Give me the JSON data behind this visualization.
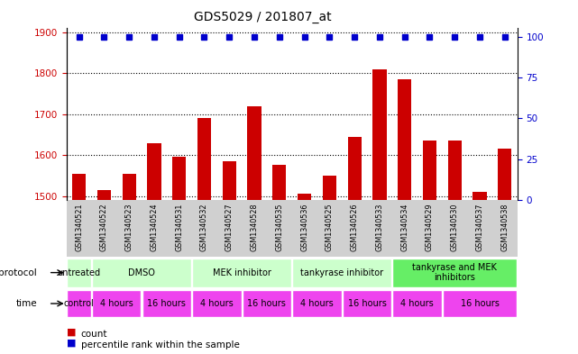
{
  "title": "GDS5029 / 201807_at",
  "samples": [
    "GSM1340521",
    "GSM1340522",
    "GSM1340523",
    "GSM1340524",
    "GSM1340531",
    "GSM1340532",
    "GSM1340527",
    "GSM1340528",
    "GSM1340535",
    "GSM1340536",
    "GSM1340525",
    "GSM1340526",
    "GSM1340533",
    "GSM1340534",
    "GSM1340529",
    "GSM1340530",
    "GSM1340537",
    "GSM1340538"
  ],
  "counts": [
    1555,
    1515,
    1555,
    1630,
    1595,
    1690,
    1585,
    1720,
    1575,
    1505,
    1550,
    1645,
    1810,
    1785,
    1635,
    1635,
    1510,
    1615
  ],
  "ylim_left": [
    1490,
    1910
  ],
  "ylim_right": [
    0,
    105
  ],
  "yticks_left": [
    1500,
    1600,
    1700,
    1800,
    1900
  ],
  "yticks_right": [
    0,
    25,
    50,
    75,
    100
  ],
  "bar_color": "#cc0000",
  "dot_color": "#0000cc",
  "left_tick_color": "#cc0000",
  "right_tick_color": "#0000cc",
  "protocol_labels": [
    "untreated",
    "DMSO",
    "MEK inhibitor",
    "tankyrase inhibitor",
    "tankyrase and MEK\ninhibitors"
  ],
  "protocol_starts": [
    0,
    1,
    5,
    9,
    13
  ],
  "protocol_ends": [
    1,
    5,
    9,
    13,
    18
  ],
  "protocol_colors": [
    "#ccffcc",
    "#ccffcc",
    "#ccffcc",
    "#ccffcc",
    "#66ee66"
  ],
  "time_labels": [
    "control",
    "4 hours",
    "16 hours",
    "4 hours",
    "16 hours",
    "4 hours",
    "16 hours",
    "4 hours",
    "16 hours"
  ],
  "time_starts": [
    0,
    1,
    3,
    5,
    7,
    9,
    11,
    13,
    15
  ],
  "time_ends": [
    1,
    3,
    5,
    7,
    9,
    11,
    13,
    15,
    18
  ],
  "time_color": "#ee44ee",
  "sample_bg_color": "#d0d0d0",
  "grid_color": "black",
  "title_fontsize": 10
}
